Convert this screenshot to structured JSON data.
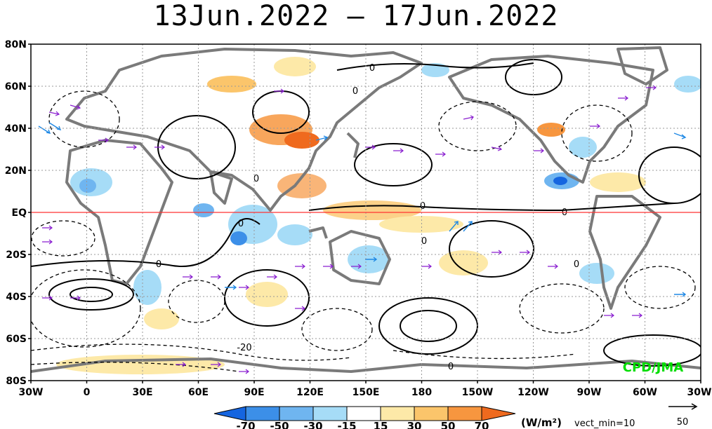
{
  "title": "13Jun.2022 – 17Jun.2022",
  "map": {
    "lat_labels": [
      "80N",
      "60N",
      "40N",
      "20N",
      "EQ",
      "20S",
      "40S",
      "60S",
      "80S"
    ],
    "lon_labels": [
      "30W",
      "0",
      "30E",
      "60E",
      "90E",
      "120E",
      "150E",
      "180",
      "150W",
      "120W",
      "90W",
      "60W",
      "30W"
    ],
    "contour_labels": [
      "0",
      "0",
      "0",
      "0",
      "0",
      "0",
      "0",
      "0",
      "0",
      "-20",
      "0"
    ],
    "watermark": "CPD/JMA",
    "colors": {
      "equator": "#ff3333",
      "land": "#7a7a7a",
      "vectors": "#8a1fd0",
      "vectors_strong": "#1e88e5"
    }
  },
  "colorbar": {
    "ticks": [
      "-70",
      "-50",
      "-30",
      "-15",
      "15",
      "30",
      "50",
      "70"
    ],
    "unit": "(W/m²)",
    "vect_min": "vect_min=10",
    "ref_vector": "50",
    "colors": [
      "#1565e0",
      "#3c8fe8",
      "#6fb5f0",
      "#a6dcf7",
      "#ffffff",
      "#fde9a8",
      "#fbc56b",
      "#f7963f",
      "#ef6a1e"
    ]
  }
}
